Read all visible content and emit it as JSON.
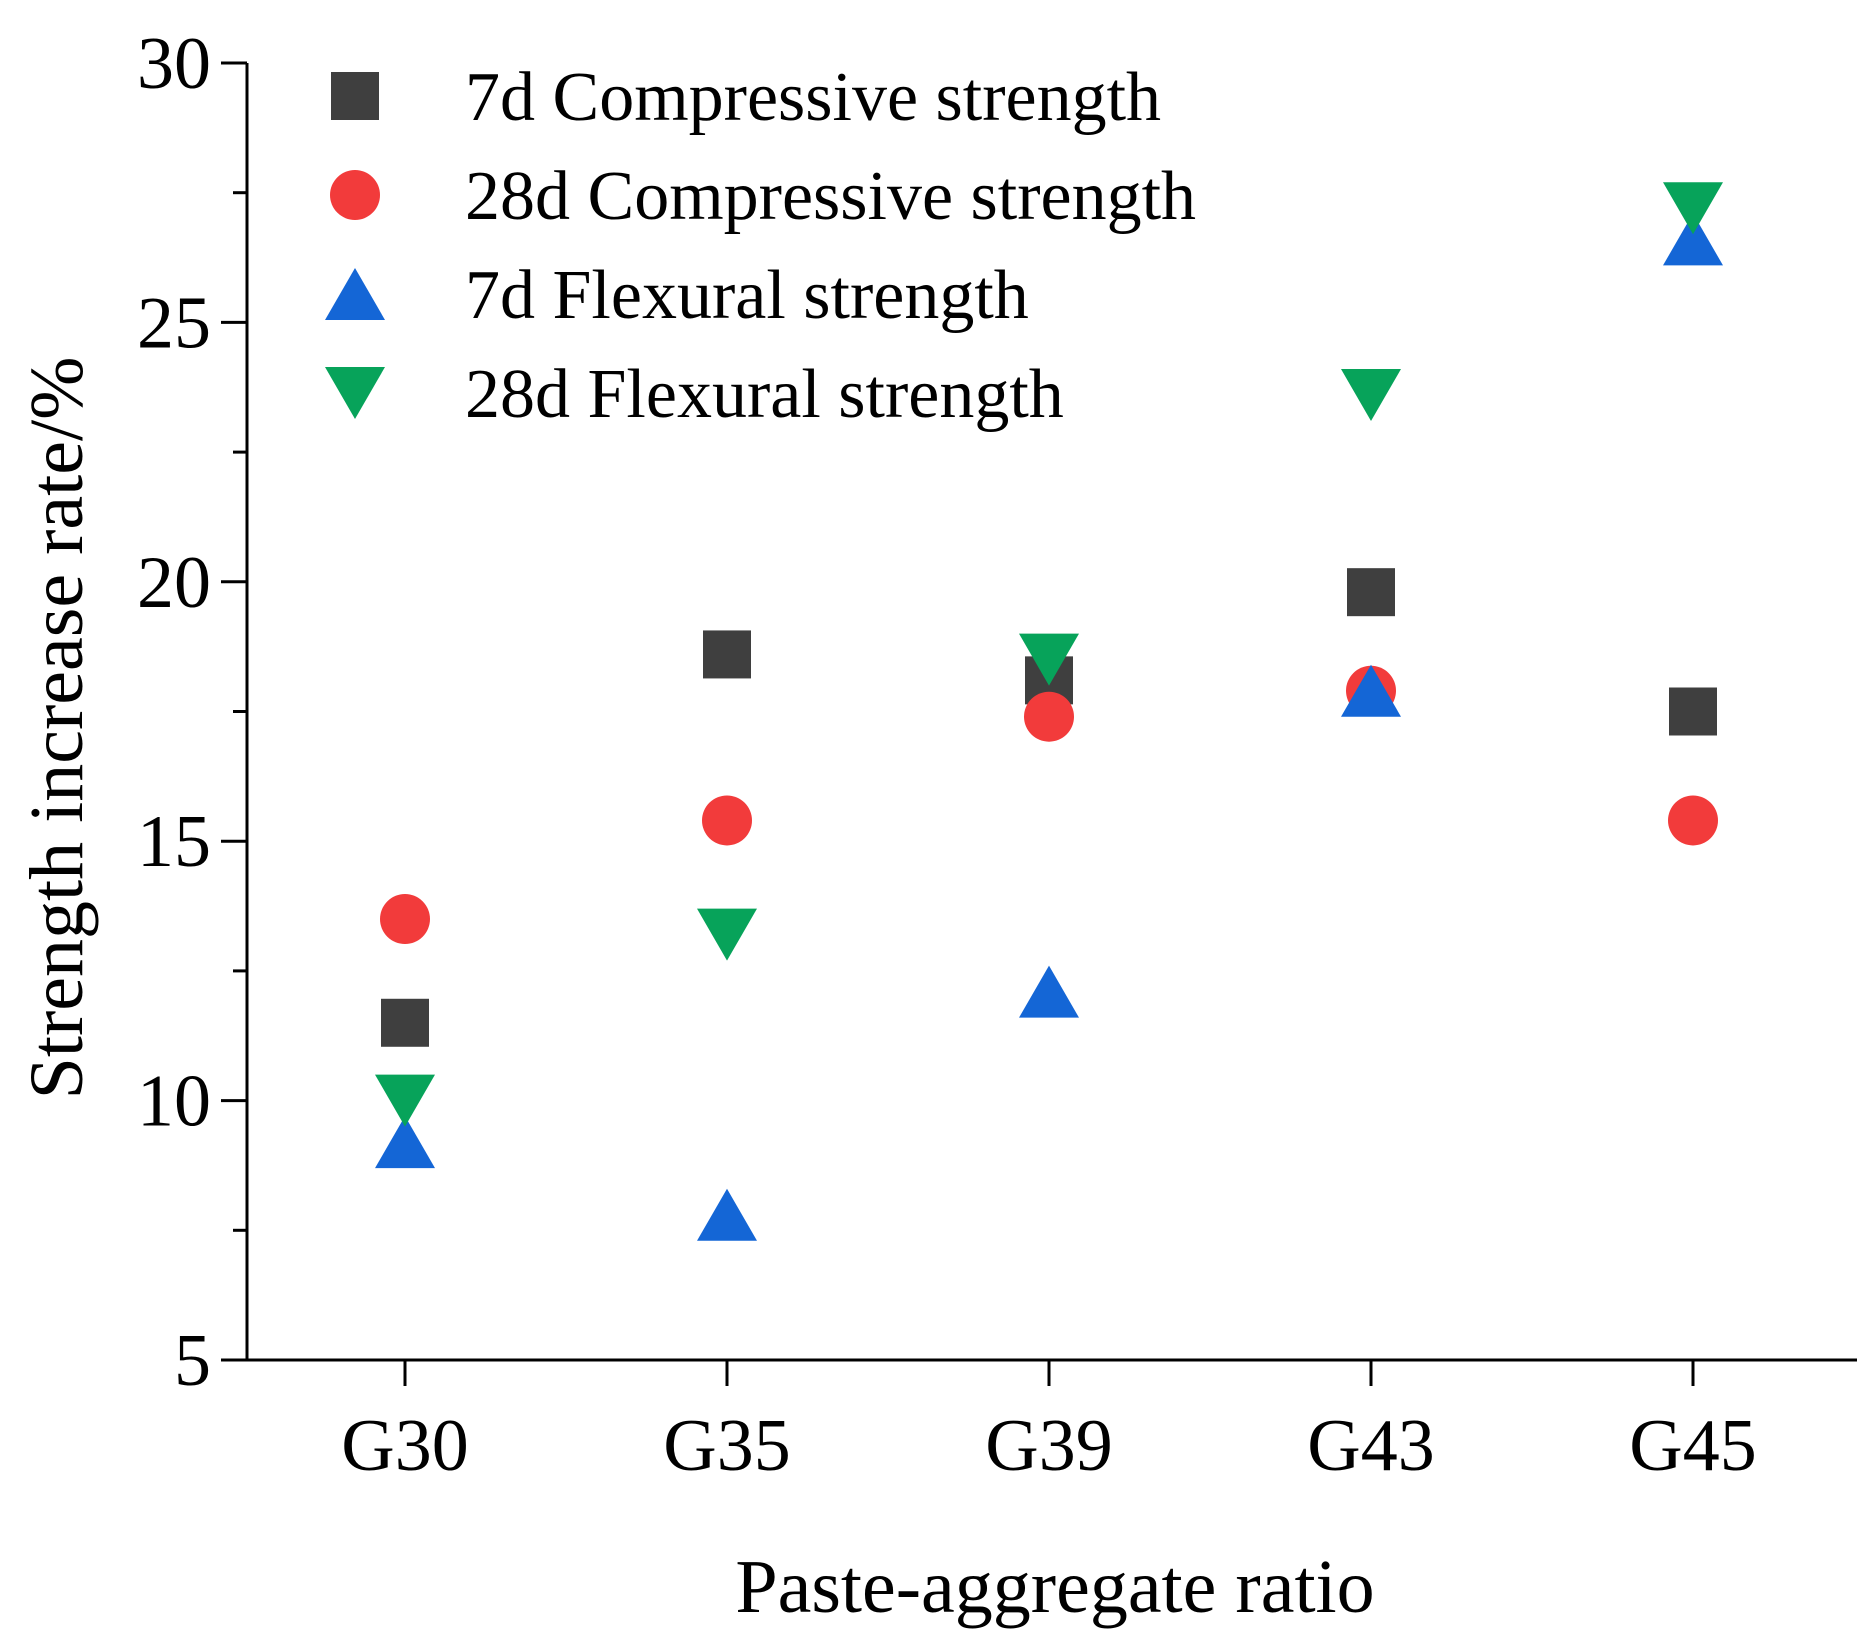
{
  "chart_data": {
    "type": "scatter",
    "title": "",
    "xlabel": "Paste-aggregate ratio",
    "ylabel": "Strength increase rate/%",
    "categories": [
      "G30",
      "G35",
      "G39",
      "G43",
      "G45"
    ],
    "ylim": [
      5,
      30
    ],
    "yticks": [
      5,
      10,
      15,
      20,
      25,
      30
    ],
    "ytick_labels": [
      "5",
      "10",
      "15",
      "20",
      "25",
      "30"
    ],
    "grid": false,
    "legend_position": "top-left",
    "series": [
      {
        "name": "7d Compressive strength",
        "marker": "square",
        "color": "#3f3f3f",
        "values": [
          11.5,
          18.6,
          18.1,
          19.8,
          17.5
        ]
      },
      {
        "name": "28d Compressive strength",
        "marker": "circle",
        "color": "#f23b3b",
        "values": [
          13.5,
          15.4,
          17.4,
          17.9,
          15.4
        ]
      },
      {
        "name": "7d Flexural strength",
        "marker": "triangle-up",
        "color": "#1466d6",
        "values": [
          9.2,
          7.8,
          12.1,
          17.9,
          26.6
        ]
      },
      {
        "name": "28d Flexural strength",
        "marker": "triangle-down",
        "color": "#07a35a",
        "values": [
          10.0,
          13.2,
          18.5,
          23.6,
          27.2
        ]
      }
    ]
  }
}
